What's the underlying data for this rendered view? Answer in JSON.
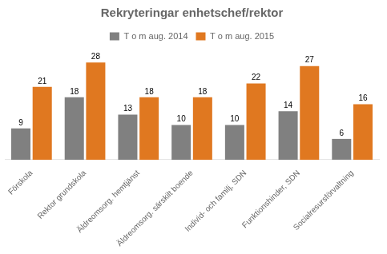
{
  "chart_data": {
    "type": "bar",
    "title": "Rekryteringar enhetschef/rektor",
    "categories": [
      "Förskola",
      "Rektor grundskola",
      "Äldreomsorg. hemtjänst",
      "Äldreomsorg. särskilt boende",
      "Individ- och familj, SDN",
      "Funktionshinder, SDN",
      "Socialresursförvaltning"
    ],
    "series": [
      {
        "name": "T o m aug. 2014",
        "color": "#808080",
        "values": [
          9,
          18,
          13,
          10,
          10,
          14,
          6
        ]
      },
      {
        "name": "T o m aug. 2015",
        "color": "#E07820",
        "values": [
          21,
          28,
          18,
          18,
          22,
          27,
          16
        ]
      }
    ],
    "ylim": [
      0,
      32
    ],
    "grid": false,
    "legend": "top",
    "data_labels": true,
    "tick_labels": "x"
  }
}
